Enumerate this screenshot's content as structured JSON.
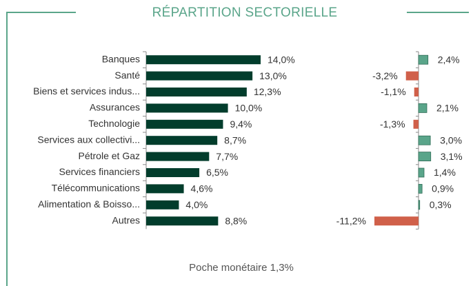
{
  "chart_data": [
    {
      "type": "bar",
      "title": "RÉPARTITION SECTORIELLE",
      "categories": [
        "Banques",
        "Santé",
        "Biens et services indus...",
        "Assurances",
        "Technologie",
        "Services aux collectivi...",
        "Pétrole et Gaz",
        "Services financiers",
        "Télécommunications",
        "Alimentation & Boisso...",
        "Autres"
      ],
      "values": [
        14.0,
        13.0,
        12.3,
        10.0,
        9.4,
        8.7,
        7.7,
        6.5,
        4.6,
        4.0,
        8.8
      ],
      "value_labels": [
        "14,0%",
        "13,0%",
        "12,3%",
        "10,0%",
        "9,4%",
        "8,7%",
        "7,7%",
        "6,5%",
        "4,6%",
        "4,0%",
        "8,8%"
      ],
      "color": "#023d2c",
      "footnote": "Poche monétaire 1,3%"
    },
    {
      "type": "bar",
      "values": [
        2.4,
        -3.2,
        -1.1,
        2.1,
        -1.3,
        3.0,
        3.1,
        1.4,
        0.9,
        0.3,
        -11.2
      ],
      "value_labels": [
        "2,4%",
        "-3,2%",
        "-1,1%",
        "2,1%",
        "-1,3%",
        "3,0%",
        "3,1%",
        "1,4%",
        "0,9%",
        "0,3%",
        "-11,2%"
      ],
      "color": "#5aa58a",
      "negative_color": "#d0604a"
    }
  ]
}
